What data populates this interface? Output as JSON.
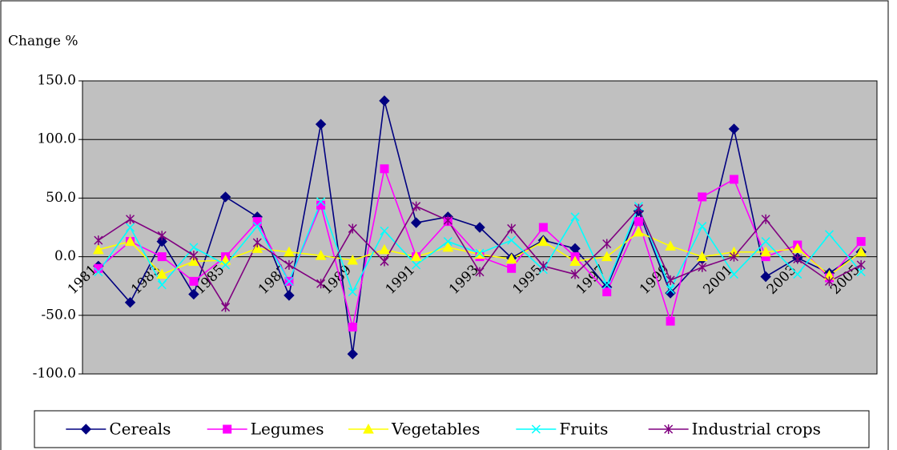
{
  "chart_data": {
    "type": "line",
    "title": "Change %",
    "categories": [
      "1981",
      null,
      "1983",
      null,
      "1985",
      null,
      "1987",
      null,
      "1989",
      null,
      "1991",
      null,
      "1993",
      null,
      "1995",
      null,
      "1997",
      null,
      "1999",
      null,
      "2001",
      null,
      "2003",
      null,
      "2005"
    ],
    "series": [
      {
        "name": "Cereals",
        "color": "#000080",
        "marker": "diamond",
        "values": [
          -8,
          -39,
          13,
          -32,
          51,
          34,
          -33,
          113,
          -83,
          133,
          29,
          34,
          25,
          -1,
          14,
          7,
          -26,
          39,
          -31,
          -2,
          109,
          -17,
          -1,
          -14,
          4
        ]
      },
      {
        "name": "Legumes",
        "color": "#ff00ff",
        "marker": "square",
        "values": [
          -10,
          13,
          0,
          -21,
          0,
          30,
          -21,
          44,
          -60,
          75,
          0,
          30,
          0,
          -10,
          25,
          0,
          -30,
          30,
          -55,
          51,
          66,
          0,
          10,
          -18,
          13
        ]
      },
      {
        "name": "Vegetables",
        "color": "#ffff00",
        "marker": "triangle",
        "values": [
          6,
          13,
          -15,
          -4,
          -3,
          7,
          4,
          1,
          -3,
          6,
          0,
          8,
          2,
          -2,
          13,
          -4,
          0,
          21,
          9,
          0,
          4,
          4,
          7,
          -16,
          4
        ]
      },
      {
        "name": "Fruits",
        "color": "#00ffff",
        "marker": "x",
        "values": [
          -13,
          25,
          -24,
          8,
          -7,
          26,
          -21,
          47,
          -30,
          22,
          -7,
          13,
          3,
          14,
          -11,
          34,
          -24,
          43,
          -28,
          26,
          -15,
          13,
          -15,
          19,
          -13
        ]
      },
      {
        "name": "Industrial crops",
        "color": "#800080",
        "marker": "star",
        "values": [
          14,
          32,
          18,
          1,
          -43,
          12,
          -7,
          -23,
          24,
          -4,
          43,
          31,
          -13,
          24,
          -8,
          -15,
          11,
          41,
          -20,
          -9,
          0,
          32,
          -2,
          -21,
          -7
        ]
      }
    ],
    "ylim": [
      -100,
      150
    ],
    "yticks": [
      {
        "value": -100,
        "label": "-100.0"
      },
      {
        "value": -50,
        "label": "-50.0"
      },
      {
        "value": 0,
        "label": "0.0"
      },
      {
        "value": 50,
        "label": "50.0"
      },
      {
        "value": 100,
        "label": "100.0"
      },
      {
        "value": 150,
        "label": "150.0"
      }
    ],
    "grid": true,
    "plot_background": "#c0c0c0",
    "legend": "bottom"
  }
}
